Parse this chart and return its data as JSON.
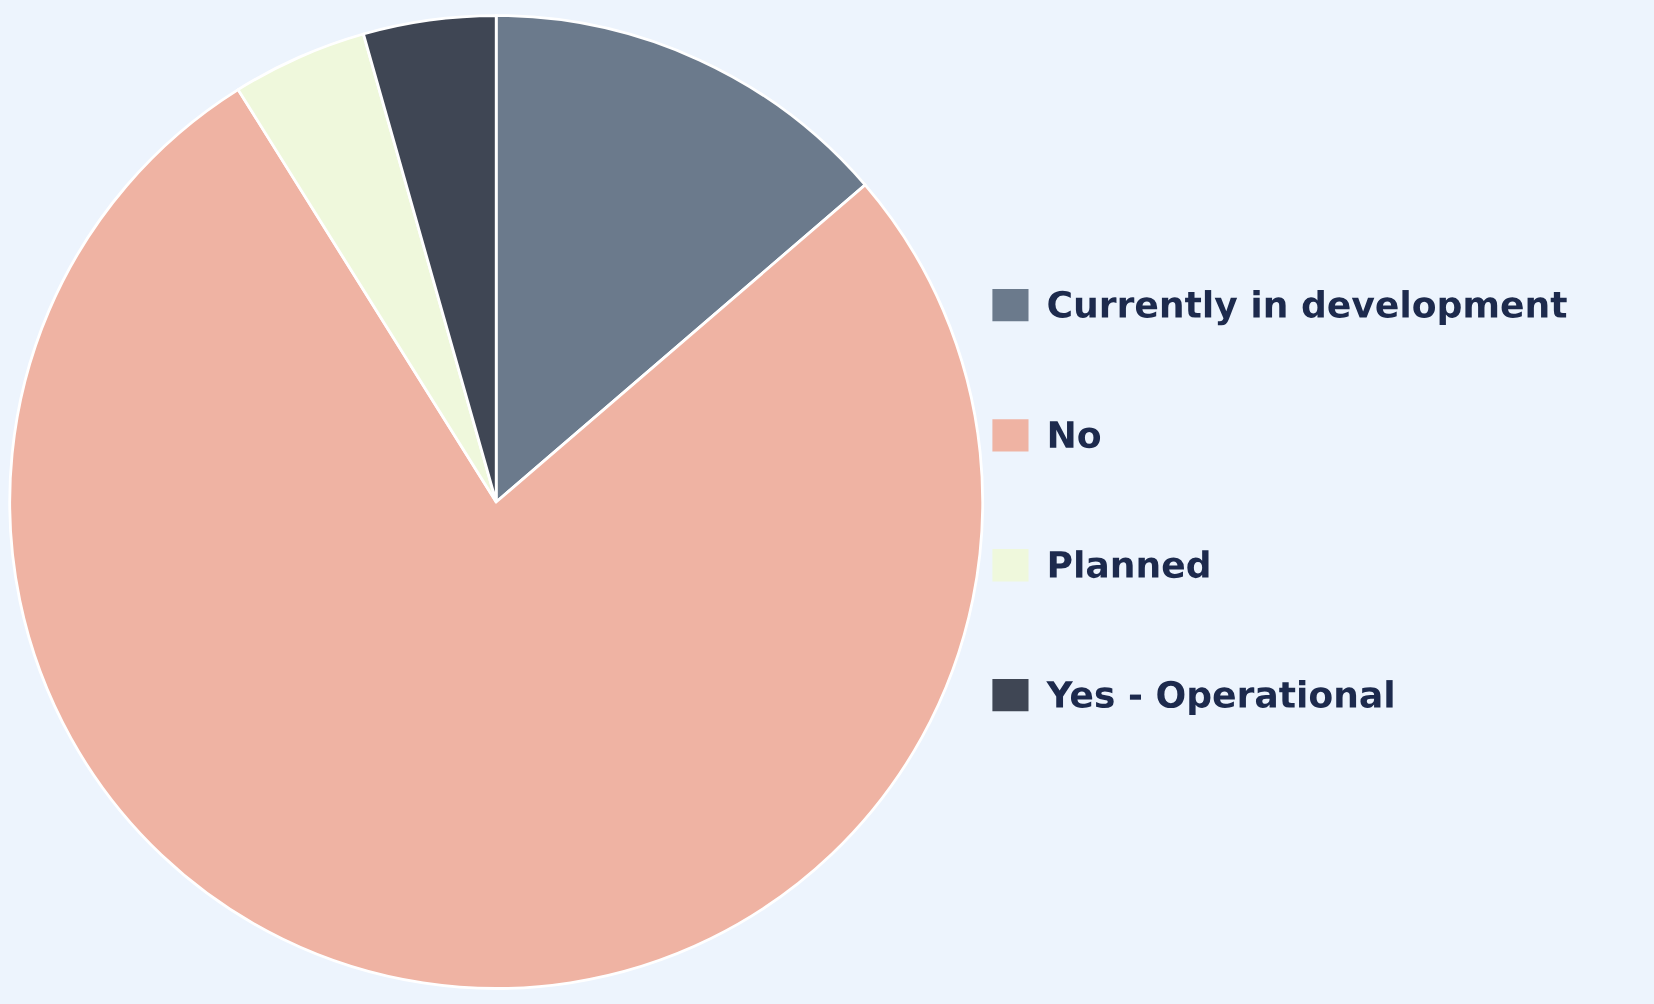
{
  "chart_data": {
    "type": "pie",
    "categories": [
      "Currently in development",
      "No",
      "Planned",
      "Yes - Operational"
    ],
    "values": [
      13.7,
      77.4,
      4.5,
      4.4
    ],
    "colors": [
      "#6b7a8c",
      "#efb3a3",
      "#eff8dc",
      "#3f4654"
    ],
    "legend": "right"
  }
}
